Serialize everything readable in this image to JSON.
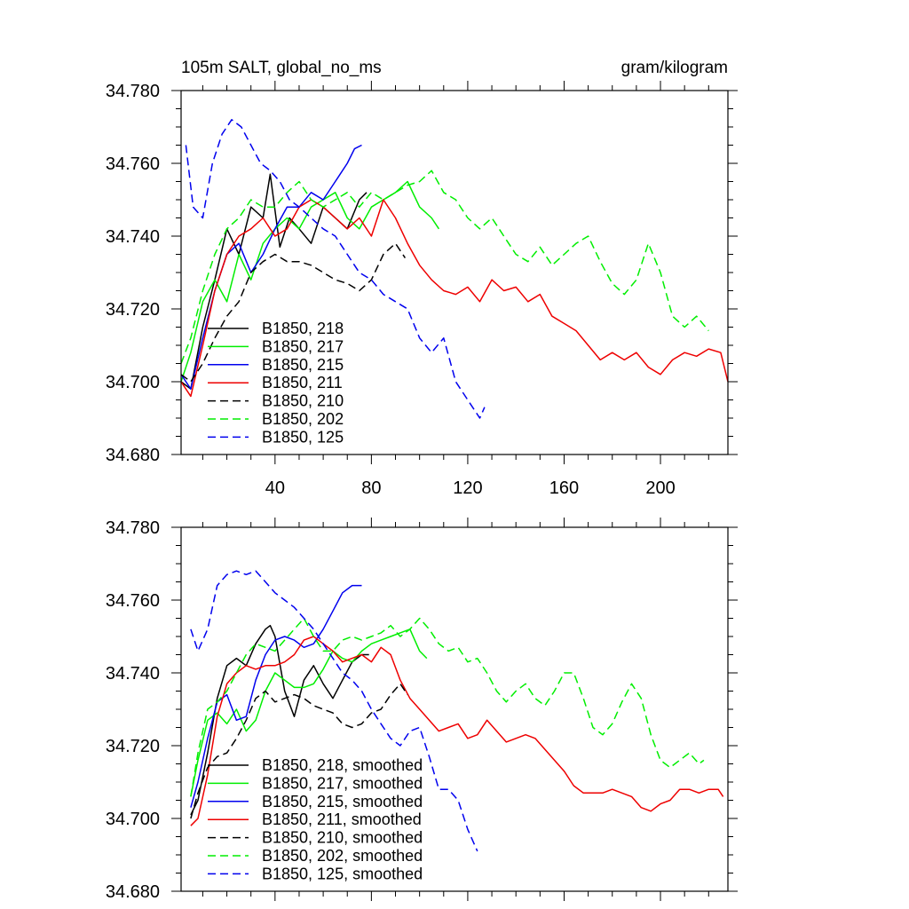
{
  "chart_data": [
    {
      "type": "line",
      "title": "105m SALT, global_no_ms",
      "units": "gram/kilogram",
      "xlabel": "",
      "ylabel": "",
      "xlim": [
        1,
        228
      ],
      "ylim": [
        34.68,
        34.78
      ],
      "xticks": [
        40,
        80,
        120,
        160,
        200
      ],
      "xtick_labels": [
        "40",
        "80",
        "120",
        "160",
        "200"
      ],
      "yticks": [
        34.68,
        34.7,
        34.72,
        34.74,
        34.76,
        34.78
      ],
      "ytick_labels": [
        "34.680",
        "34.700",
        "34.720",
        "34.740",
        "34.760",
        "34.780"
      ],
      "legend_position": "bottom-left",
      "series": [
        {
          "name": "B1850, 218",
          "color": "#000000",
          "dash": "solid",
          "x": [
            1,
            5,
            10,
            15,
            20,
            25,
            30,
            35,
            38,
            42,
            46,
            50,
            55,
            60,
            65,
            70,
            75,
            78
          ],
          "y": [
            34.7,
            34.698,
            34.715,
            34.728,
            34.742,
            34.735,
            34.748,
            34.745,
            34.757,
            34.737,
            34.745,
            34.742,
            34.738,
            34.748,
            34.745,
            34.742,
            34.75,
            34.752
          ]
        },
        {
          "name": "B1850, 217",
          "color": "#00ee00",
          "dash": "solid",
          "x": [
            1,
            5,
            10,
            15,
            20,
            25,
            30,
            35,
            40,
            45,
            50,
            55,
            60,
            65,
            70,
            75,
            80,
            85,
            90,
            95,
            100,
            105,
            108
          ],
          "y": [
            34.7,
            34.708,
            34.722,
            34.728,
            34.722,
            34.735,
            34.728,
            34.738,
            34.742,
            34.745,
            34.742,
            34.748,
            34.75,
            34.752,
            34.745,
            34.742,
            34.748,
            34.75,
            34.752,
            34.755,
            34.748,
            34.745,
            34.742
          ]
        },
        {
          "name": "B1850, 215",
          "color": "#0000ee",
          "dash": "solid",
          "x": [
            1,
            5,
            10,
            15,
            20,
            25,
            30,
            35,
            40,
            45,
            50,
            55,
            60,
            65,
            70,
            73,
            76
          ],
          "y": [
            34.702,
            34.698,
            34.712,
            34.725,
            34.735,
            34.738,
            34.73,
            34.735,
            34.742,
            34.748,
            34.748,
            34.752,
            34.75,
            34.755,
            34.76,
            34.764,
            34.765
          ]
        },
        {
          "name": "B1850, 211",
          "color": "#ee0000",
          "dash": "solid",
          "x": [
            1,
            5,
            10,
            15,
            20,
            25,
            30,
            35,
            40,
            45,
            50,
            55,
            60,
            65,
            70,
            75,
            80,
            85,
            90,
            95,
            100,
            105,
            110,
            115,
            120,
            125,
            130,
            135,
            140,
            145,
            150,
            155,
            160,
            165,
            170,
            175,
            180,
            185,
            190,
            195,
            200,
            205,
            210,
            215,
            220,
            225,
            228
          ],
          "y": [
            34.7,
            34.696,
            34.71,
            34.725,
            34.735,
            34.74,
            34.742,
            34.745,
            34.74,
            34.742,
            34.748,
            34.75,
            34.748,
            34.745,
            34.742,
            34.745,
            34.74,
            34.75,
            34.745,
            34.738,
            34.732,
            34.728,
            34.725,
            34.724,
            34.726,
            34.722,
            34.728,
            34.725,
            34.726,
            34.722,
            34.724,
            34.718,
            34.716,
            34.714,
            34.71,
            34.706,
            34.708,
            34.706,
            34.708,
            34.704,
            34.702,
            34.706,
            34.708,
            34.707,
            34.709,
            34.708,
            34.7
          ]
        },
        {
          "name": "B1850, 210",
          "color": "#000000",
          "dash": "dashed",
          "x": [
            1,
            5,
            10,
            15,
            20,
            25,
            30,
            35,
            40,
            45,
            50,
            55,
            60,
            65,
            70,
            75,
            80,
            85,
            90,
            94
          ],
          "y": [
            34.702,
            34.7,
            34.705,
            34.712,
            34.718,
            34.722,
            34.73,
            34.733,
            34.735,
            34.733,
            34.733,
            34.732,
            34.73,
            34.728,
            34.727,
            34.725,
            34.728,
            34.735,
            34.738,
            34.734
          ]
        },
        {
          "name": "B1850, 202",
          "color": "#00ee00",
          "dash": "dashed",
          "x": [
            1,
            5,
            10,
            15,
            20,
            25,
            30,
            35,
            40,
            45,
            50,
            55,
            60,
            65,
            70,
            75,
            80,
            85,
            90,
            95,
            100,
            105,
            110,
            115,
            120,
            125,
            130,
            135,
            140,
            145,
            150,
            155,
            160,
            165,
            170,
            175,
            180,
            185,
            190,
            195,
            200,
            205,
            210,
            215,
            220
          ],
          "y": [
            34.705,
            34.712,
            34.725,
            34.735,
            34.742,
            34.745,
            34.75,
            34.748,
            34.748,
            34.752,
            34.755,
            34.75,
            34.748,
            34.75,
            34.752,
            34.748,
            34.752,
            34.75,
            34.752,
            34.754,
            34.755,
            34.758,
            34.752,
            34.75,
            34.745,
            34.742,
            34.745,
            34.74,
            34.735,
            34.733,
            34.737,
            34.732,
            34.735,
            34.738,
            34.74,
            34.733,
            34.727,
            34.724,
            34.728,
            34.738,
            34.73,
            34.718,
            34.715,
            34.718,
            34.714
          ]
        },
        {
          "name": "B1850, 125",
          "color": "#0000ee",
          "dash": "dashed",
          "x": [
            3,
            6,
            10,
            14,
            18,
            22,
            26,
            30,
            34,
            38,
            42,
            46,
            50,
            55,
            60,
            65,
            70,
            75,
            80,
            85,
            90,
            95,
            100,
            105,
            110,
            115,
            120,
            125,
            127
          ],
          "y": [
            34.765,
            34.748,
            34.745,
            34.76,
            34.768,
            34.772,
            34.77,
            34.765,
            34.76,
            34.758,
            34.755,
            34.75,
            34.748,
            34.745,
            34.742,
            34.74,
            34.735,
            34.73,
            34.728,
            34.724,
            34.722,
            34.72,
            34.712,
            34.708,
            34.712,
            34.7,
            34.695,
            34.69,
            34.693
          ]
        }
      ]
    },
    {
      "type": "line",
      "title": "",
      "units": "",
      "xlabel": "",
      "ylabel": "",
      "xlim": [
        1,
        228
      ],
      "ylim": [
        34.68,
        34.78
      ],
      "xticks": [
        40,
        80,
        120,
        160,
        200
      ],
      "xtick_labels": [],
      "yticks": [
        34.68,
        34.7,
        34.72,
        34.74,
        34.76,
        34.78
      ],
      "ytick_labels": [
        "34.680",
        "34.700",
        "34.720",
        "34.740",
        "34.760",
        "34.780"
      ],
      "legend_position": "bottom-left",
      "series": [
        {
          "name": "B1850, 218, smoothed",
          "color": "#000000",
          "dash": "solid",
          "x": [
            5,
            8,
            12,
            16,
            20,
            24,
            28,
            32,
            36,
            38,
            40,
            44,
            48,
            52,
            56,
            60,
            64,
            68,
            72,
            76,
            79
          ],
          "y": [
            34.701,
            34.705,
            34.718,
            34.733,
            34.742,
            34.744,
            34.742,
            34.748,
            34.752,
            34.753,
            34.75,
            34.735,
            34.728,
            34.738,
            34.742,
            34.737,
            34.733,
            34.738,
            34.743,
            34.745,
            34.745
          ]
        },
        {
          "name": "B1850, 217, smoothed",
          "color": "#00ee00",
          "dash": "solid",
          "x": [
            5,
            8,
            12,
            16,
            20,
            24,
            28,
            32,
            36,
            40,
            44,
            48,
            52,
            56,
            60,
            64,
            68,
            72,
            76,
            80,
            84,
            88,
            92,
            96,
            100,
            103
          ],
          "y": [
            34.706,
            34.716,
            34.727,
            34.729,
            34.726,
            34.73,
            34.724,
            34.727,
            34.735,
            34.74,
            34.738,
            34.736,
            34.736,
            34.737,
            34.741,
            34.746,
            34.744,
            34.743,
            34.746,
            34.748,
            34.749,
            34.75,
            34.751,
            34.752,
            34.746,
            34.744
          ]
        },
        {
          "name": "B1850, 215, smoothed",
          "color": "#0000ee",
          "dash": "solid",
          "x": [
            5,
            8,
            12,
            16,
            20,
            24,
            28,
            32,
            36,
            40,
            44,
            48,
            52,
            56,
            60,
            64,
            68,
            72,
            76
          ],
          "y": [
            34.703,
            34.71,
            34.722,
            34.732,
            34.734,
            34.727,
            34.728,
            34.738,
            34.745,
            34.749,
            34.75,
            34.749,
            34.747,
            34.748,
            34.752,
            34.757,
            34.762,
            34.764,
            34.764
          ]
        },
        {
          "name": "B1850, 211, smoothed",
          "color": "#ee0000",
          "dash": "solid",
          "x": [
            5,
            8,
            12,
            16,
            20,
            24,
            28,
            32,
            36,
            40,
            44,
            48,
            52,
            56,
            60,
            64,
            68,
            72,
            76,
            80,
            84,
            88,
            92,
            96,
            100,
            104,
            108,
            112,
            116,
            120,
            124,
            128,
            132,
            136,
            140,
            144,
            148,
            152,
            156,
            160,
            164,
            168,
            172,
            176,
            180,
            184,
            188,
            192,
            196,
            200,
            204,
            208,
            212,
            216,
            220,
            224,
            226
          ],
          "y": [
            34.698,
            34.7,
            34.712,
            34.728,
            34.737,
            34.74,
            34.742,
            34.741,
            34.742,
            34.742,
            34.743,
            34.745,
            34.749,
            34.75,
            34.748,
            34.746,
            34.743,
            34.744,
            34.745,
            34.743,
            34.747,
            34.745,
            34.738,
            34.733,
            34.73,
            34.727,
            34.724,
            34.725,
            34.726,
            34.722,
            34.723,
            34.727,
            34.724,
            34.721,
            34.722,
            34.723,
            34.722,
            34.719,
            34.716,
            34.713,
            34.709,
            34.707,
            34.707,
            34.707,
            34.708,
            34.707,
            34.706,
            34.703,
            34.702,
            34.704,
            34.705,
            34.708,
            34.708,
            34.707,
            34.708,
            34.708,
            34.706
          ]
        },
        {
          "name": "B1850, 210, smoothed",
          "color": "#000000",
          "dash": "dashed",
          "x": [
            5,
            8,
            12,
            16,
            20,
            24,
            28,
            32,
            36,
            40,
            44,
            48,
            52,
            56,
            60,
            64,
            68,
            72,
            76,
            80,
            84,
            88,
            92,
            95
          ],
          "y": [
            34.7,
            34.707,
            34.714,
            34.717,
            34.718,
            34.722,
            34.727,
            34.733,
            34.735,
            34.732,
            34.733,
            34.734,
            34.733,
            34.731,
            34.73,
            34.729,
            34.726,
            34.725,
            34.726,
            34.729,
            34.73,
            34.734,
            34.737,
            34.734
          ]
        },
        {
          "name": "B1850, 202, smoothed",
          "color": "#00ee00",
          "dash": "dashed",
          "x": [
            5,
            8,
            12,
            16,
            20,
            24,
            28,
            32,
            36,
            40,
            44,
            48,
            52,
            56,
            60,
            64,
            68,
            72,
            76,
            80,
            84,
            88,
            92,
            96,
            100,
            104,
            108,
            112,
            116,
            120,
            124,
            128,
            132,
            136,
            140,
            144,
            148,
            152,
            156,
            160,
            164,
            168,
            172,
            176,
            180,
            184,
            188,
            192,
            196,
            200,
            204,
            208,
            212,
            216,
            218
          ],
          "y": [
            34.706,
            34.718,
            34.73,
            34.732,
            34.735,
            34.74,
            34.745,
            34.748,
            34.747,
            34.746,
            34.749,
            34.752,
            34.755,
            34.75,
            34.746,
            34.746,
            34.749,
            34.75,
            34.749,
            34.75,
            34.751,
            34.753,
            34.75,
            34.752,
            34.755,
            34.752,
            34.748,
            34.746,
            34.747,
            34.743,
            34.744,
            34.74,
            34.735,
            34.732,
            34.735,
            34.737,
            34.733,
            34.731,
            34.735,
            34.74,
            34.74,
            34.733,
            34.725,
            34.723,
            34.726,
            34.732,
            34.737,
            34.733,
            34.723,
            34.716,
            34.714,
            34.716,
            34.718,
            34.715,
            34.716
          ]
        },
        {
          "name": "B1850, 125, smoothed",
          "color": "#0000ee",
          "dash": "dashed",
          "x": [
            5,
            8,
            12,
            16,
            20,
            24,
            28,
            32,
            36,
            40,
            44,
            48,
            52,
            56,
            60,
            64,
            68,
            72,
            76,
            80,
            84,
            88,
            92,
            96,
            100,
            104,
            108,
            112,
            116,
            120,
            124
          ],
          "y": [
            34.752,
            34.746,
            34.752,
            34.764,
            34.767,
            34.768,
            34.767,
            34.768,
            34.765,
            34.762,
            34.76,
            34.758,
            34.755,
            34.752,
            34.748,
            34.744,
            34.74,
            34.738,
            34.735,
            34.73,
            34.726,
            34.722,
            34.72,
            34.724,
            34.725,
            34.717,
            34.708,
            34.708,
            34.705,
            34.697,
            34.691
          ]
        }
      ]
    }
  ]
}
